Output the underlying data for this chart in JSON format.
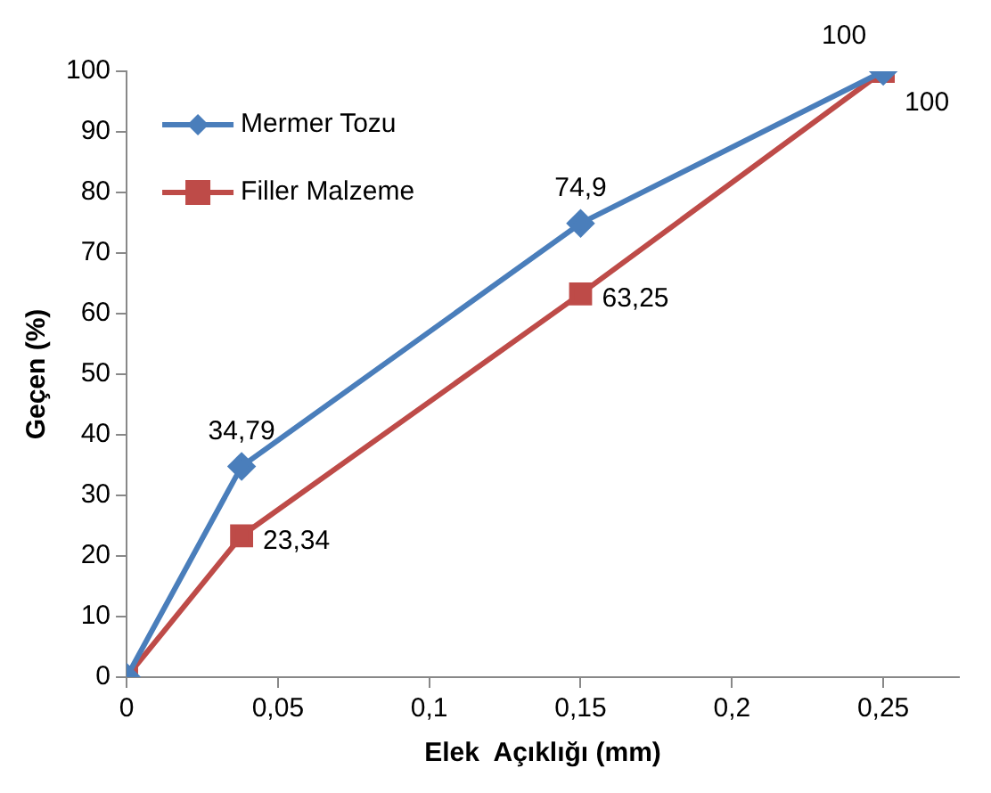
{
  "chart_data": {
    "type": "line",
    "xlabel": "Elek  Açıklığı (mm)",
    "ylabel": "Geçen (%)",
    "x": [
      0,
      0.038,
      0.15,
      0.25
    ],
    "series": [
      {
        "name": "Mermer Tozu",
        "color": "#4a7ebb",
        "marker": "diamond",
        "values": [
          0,
          34.79,
          74.9,
          100
        ],
        "value_labels": [
          null,
          "34,79",
          "74,9",
          "100"
        ]
      },
      {
        "name": "Filler Malzeme",
        "color": "#be4b48",
        "marker": "square",
        "values": [
          0,
          23.34,
          63.25,
          100
        ],
        "value_labels": [
          null,
          "23,34",
          "63,25",
          "100"
        ]
      }
    ],
    "xlim": [
      0,
      0.275
    ],
    "xticks": [
      0,
      {
        "value": 0.05,
        "label": "0,05"
      },
      {
        "value": 0.1,
        "label": "0,1"
      },
      {
        "value": 0.15,
        "label": "0,15"
      },
      {
        "value": 0.2,
        "label": "0,2"
      },
      {
        "value": 0.25,
        "label": "0,25"
      }
    ],
    "ylim": [
      0,
      100
    ],
    "yticks": [
      0,
      10,
      20,
      30,
      40,
      50,
      60,
      70,
      80,
      90,
      100
    ],
    "grid": false,
    "legend": "top left",
    "line_style": "solid"
  }
}
